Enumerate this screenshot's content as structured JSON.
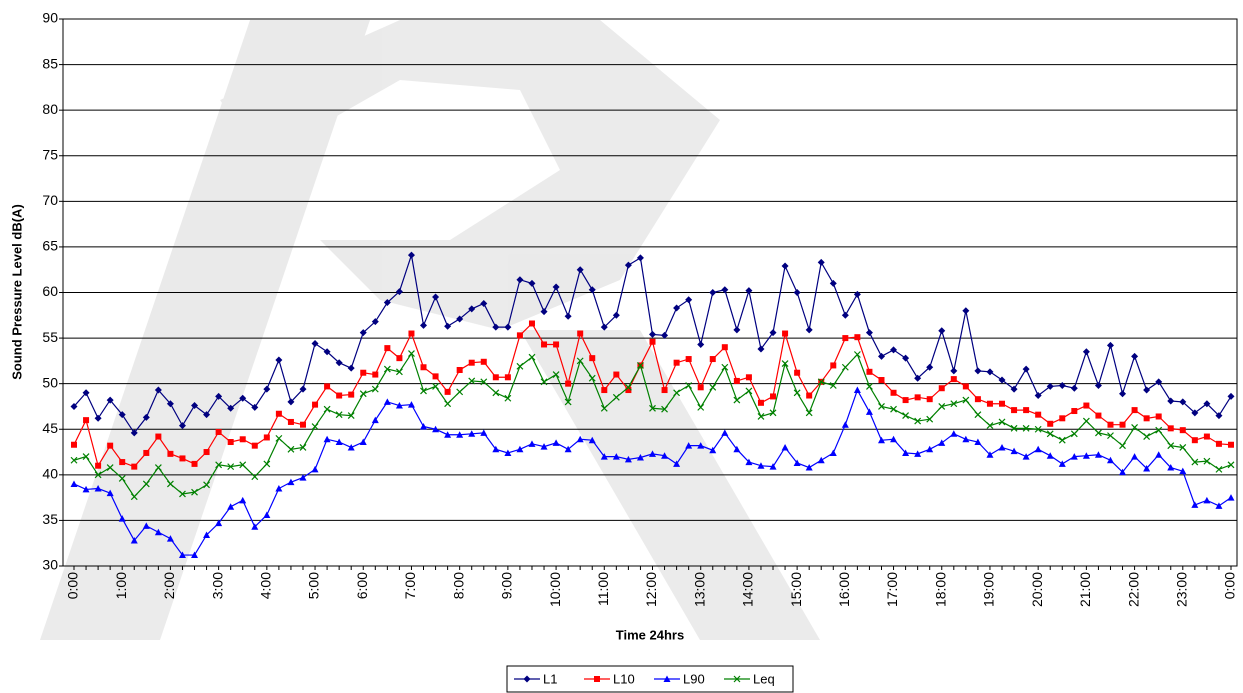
{
  "chart_data": {
    "type": "line",
    "x_label": "Time 24hrs",
    "y_label": "Sound Pressure Level dB(A)",
    "categories": [
      "0:00",
      null,
      null,
      null,
      "1:00",
      null,
      null,
      null,
      "2:00",
      null,
      null,
      null,
      "3:00",
      null,
      null,
      null,
      "4:00",
      null,
      null,
      null,
      "5:00",
      null,
      null,
      null,
      "6:00",
      null,
      null,
      null,
      "7:00",
      null,
      null,
      null,
      "8:00",
      null,
      null,
      null,
      "9:00",
      null,
      null,
      null,
      "10:00",
      null,
      null,
      null,
      "11:00",
      null,
      null,
      null,
      "12:00",
      null,
      null,
      null,
      "13:00",
      null,
      null,
      null,
      "14:00",
      null,
      null,
      null,
      "15:00",
      null,
      null,
      null,
      "16:00",
      null,
      null,
      null,
      "17:00",
      null,
      null,
      null,
      "18:00",
      null,
      null,
      null,
      "19:00",
      null,
      null,
      null,
      "20:00",
      null,
      null,
      null,
      "21:00",
      null,
      null,
      null,
      "22:00",
      null,
      null,
      null,
      "23:00",
      null,
      null,
      null,
      "0:00"
    ],
    "series": [
      {
        "name": "L1",
        "color": "#000080",
        "marker": "diamond",
        "values": [
          47.5,
          49,
          46.2,
          48.2,
          46.6,
          44.6,
          46.3,
          49.3,
          47.8,
          45.4,
          47.6,
          46.6,
          48.6,
          47.3,
          48.4,
          47.4,
          49.4,
          52.6,
          48,
          49.4,
          54.4,
          53.5,
          52.3,
          51.7,
          55.6,
          56.8,
          58.9,
          60.1,
          64.1,
          56.4,
          59.5,
          56.3,
          57.1,
          58.2,
          58.8,
          56.2,
          56.2,
          61.4,
          61,
          57.9,
          60.6,
          57.4,
          62.5,
          60.3,
          56.2,
          57.5,
          63,
          63.8,
          55.4,
          55.3,
          58.3,
          59.2,
          54.3,
          60,
          60.3,
          55.9,
          60.2,
          53.8,
          55.6,
          62.9,
          60,
          55.9,
          63.3,
          61,
          57.5,
          59.8,
          55.6,
          53,
          53.7,
          52.8,
          50.6,
          51.8,
          55.8,
          51.4,
          58,
          51.4,
          51.3,
          50.4,
          49.4,
          51.6,
          48.7,
          49.7,
          49.8,
          49.5,
          53.5,
          49.8,
          54.2,
          48.9,
          53,
          49.3,
          50.2,
          48.1,
          48,
          46.8,
          47.8,
          46.5,
          48.6
        ]
      },
      {
        "name": "L10",
        "color": "#ff0000",
        "marker": "square",
        "values": [
          43.3,
          46,
          41,
          43.2,
          41.4,
          40.9,
          42.4,
          44.2,
          42.3,
          41.8,
          41.2,
          42.5,
          44.7,
          43.6,
          43.9,
          43.2,
          44.1,
          46.7,
          45.8,
          45.5,
          47.7,
          49.7,
          48.7,
          48.8,
          51.2,
          51,
          53.9,
          52.8,
          55.5,
          51.8,
          50.8,
          49.1,
          51.5,
          52.3,
          52.4,
          50.7,
          50.7,
          55.3,
          56.6,
          54.3,
          54.3,
          50,
          55.5,
          52.8,
          49.3,
          51,
          49.3,
          52,
          54.6,
          49.3,
          52.3,
          52.7,
          49.6,
          52.7,
          54,
          50.3,
          50.7,
          47.9,
          48.6,
          55.5,
          51.2,
          48.7,
          50.2,
          52,
          55,
          55.1,
          51.3,
          50.4,
          49,
          48.2,
          48.5,
          48.3,
          49.5,
          50.5,
          49.7,
          48.3,
          47.8,
          47.8,
          47.1,
          47.1,
          46.6,
          45.6,
          46.2,
          47,
          47.6,
          46.5,
          45.5,
          45.5,
          47.1,
          46.2,
          46.4,
          45.1,
          44.9,
          43.8,
          44.2,
          43.4,
          43.3
        ]
      },
      {
        "name": "L90",
        "color": "#0000ff",
        "marker": "triangle",
        "values": [
          39,
          38.4,
          38.5,
          38,
          35.2,
          32.8,
          34.4,
          33.7,
          33,
          31.2,
          31.2,
          33.4,
          34.7,
          36.5,
          37.2,
          34.3,
          35.6,
          38.5,
          39.2,
          39.7,
          40.6,
          43.9,
          43.6,
          43,
          43.6,
          46,
          48,
          47.6,
          47.7,
          45.3,
          45,
          44.4,
          44.4,
          44.5,
          44.6,
          42.8,
          42.4,
          42.8,
          43.4,
          43.1,
          43.5,
          42.8,
          43.9,
          43.8,
          42,
          42,
          41.7,
          41.9,
          42.3,
          42.1,
          41.2,
          43.2,
          43.2,
          42.7,
          44.6,
          42.8,
          41.4,
          41,
          40.9,
          43,
          41.3,
          40.8,
          41.6,
          42.4,
          45.5,
          49.3,
          46.9,
          43.8,
          43.9,
          42.4,
          42.3,
          42.8,
          43.5,
          44.5,
          43.9,
          43.6,
          42.2,
          43,
          42.6,
          42,
          42.8,
          42.1,
          41.2,
          42,
          42.1,
          42.2,
          41.6,
          40.3,
          42,
          40.7,
          42.2,
          40.8,
          40.4,
          36.7,
          37.2,
          36.6,
          37.5
        ]
      },
      {
        "name": "Leq",
        "color": "#008000",
        "marker": "x",
        "values": [
          41.6,
          42,
          40,
          40.8,
          39.6,
          37.6,
          39,
          40.8,
          39,
          37.9,
          38.1,
          38.9,
          41.1,
          40.9,
          41.1,
          39.8,
          41.2,
          44,
          42.8,
          43,
          45.3,
          47.2,
          46.6,
          46.5,
          48.9,
          49.4,
          51.6,
          51.3,
          53.3,
          49.2,
          49.7,
          47.8,
          49.1,
          50.3,
          50.2,
          49,
          48.4,
          51.9,
          52.9,
          50.2,
          51,
          48,
          52.5,
          50.6,
          47.3,
          48.5,
          49.6,
          52,
          47.3,
          47.2,
          49,
          49.8,
          47.4,
          49.6,
          51.8,
          48.2,
          49.2,
          46.4,
          46.8,
          52.2,
          49,
          46.8,
          50.2,
          49.8,
          51.8,
          53.2,
          49.7,
          47.5,
          47.2,
          46.5,
          45.9,
          46.1,
          47.5,
          47.8,
          48.2,
          46.6,
          45.4,
          45.8,
          45.1,
          45.1,
          45,
          44.5,
          43.8,
          44.5,
          45.9,
          44.6,
          44.3,
          43.2,
          45.2,
          44.2,
          44.9,
          43.2,
          43,
          41.4,
          41.5,
          40.6,
          41.1
        ]
      }
    ],
    "ylim": [
      30,
      90
    ],
    "yticks": [
      30,
      35,
      40,
      45,
      50,
      55,
      60,
      65,
      70,
      75,
      80,
      85,
      90
    ],
    "grid": true,
    "legend": "bottom"
  }
}
